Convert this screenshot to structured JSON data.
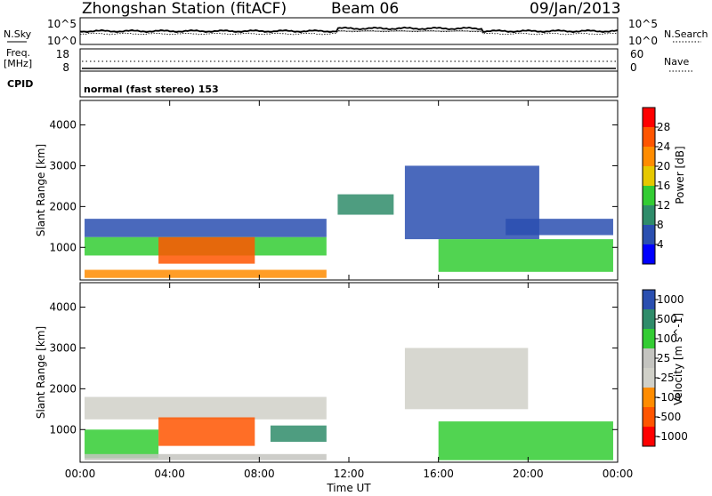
{
  "header": {
    "station": "Zhongshan Station (fitACF)",
    "beam": "Beam 06",
    "date": "09/Jan/2013"
  },
  "noise_panel": {
    "left_label": "N.Sky",
    "right_label": "N.Search",
    "left_ticks": [
      "10^5",
      "10^0"
    ],
    "right_ticks": [
      "10^5",
      "10^0"
    ]
  },
  "freq_panel": {
    "left_label_line1": "Freq.",
    "left_label_line2": "[MHz]",
    "right_label": "Nave",
    "left_ticks": [
      "18",
      "8"
    ],
    "right_ticks": [
      "60",
      "0"
    ]
  },
  "cpid": {
    "label": "CPID",
    "text": "normal (fast stereo) 153"
  },
  "colors": {
    "power_scale": [
      "#0000ff",
      "#2a4fb0",
      "#2f8c6a",
      "#33cc33",
      "#e6c800",
      "#ff8c00",
      "#ff5500",
      "#ff0000"
    ],
    "velocity_scale": [
      "#ff0000",
      "#ff5500",
      "#ff8c00",
      "#d0d0c8",
      "#c4c4c0",
      "#33cc33",
      "#2f8c6a",
      "#2a4fb0"
    ]
  },
  "chart_data": [
    {
      "type": "heatmap",
      "title": "",
      "xlabel": "",
      "ylabel": "Slant Range [km]",
      "xlim": [
        "00:00",
        "00:00"
      ],
      "ylim": [
        200,
        4600
      ],
      "x_ticks": [
        "00:00",
        "04:00",
        "08:00",
        "12:00",
        "16:00",
        "20:00",
        "00:00"
      ],
      "y_ticks": [
        1000,
        2000,
        3000,
        4000
      ],
      "colorbar": {
        "label": "Power [dB]",
        "range": [
          0,
          32
        ],
        "ticks": [
          4,
          8,
          12,
          16,
          20,
          24,
          28
        ]
      },
      "regions": [
        {
          "t_start_h": 0.2,
          "t_end_h": 11.0,
          "range_start_km": 1250,
          "range_end_km": 1700,
          "value_db": 6
        },
        {
          "t_start_h": 0.2,
          "t_end_h": 11.0,
          "range_start_km": 800,
          "range_end_km": 1250,
          "value_db": 12
        },
        {
          "t_start_h": 3.5,
          "t_end_h": 7.8,
          "range_start_km": 600,
          "range_end_km": 1250,
          "value_db": 26
        },
        {
          "t_start_h": 0.2,
          "t_end_h": 11.0,
          "range_start_km": 250,
          "range_end_km": 450,
          "value_db": 20
        },
        {
          "t_start_h": 11.5,
          "t_end_h": 14.0,
          "range_start_km": 1800,
          "range_end_km": 2300,
          "value_db": 8
        },
        {
          "t_start_h": 14.5,
          "t_end_h": 20.5,
          "range_start_km": 1200,
          "range_end_km": 3000,
          "value_db": 6
        },
        {
          "t_start_h": 16.0,
          "t_end_h": 23.8,
          "range_start_km": 400,
          "range_end_km": 1200,
          "value_db": 14
        },
        {
          "t_start_h": 19.0,
          "t_end_h": 23.8,
          "range_start_km": 1300,
          "range_end_km": 1700,
          "value_db": 6
        }
      ]
    },
    {
      "type": "heatmap",
      "title": "",
      "xlabel": "Time UT",
      "ylabel": "Slant Range [km]",
      "xlim": [
        "00:00",
        "00:00"
      ],
      "ylim": [
        200,
        4600
      ],
      "x_ticks": [
        "00:00",
        "04:00",
        "08:00",
        "12:00",
        "16:00",
        "20:00",
        "00:00"
      ],
      "y_ticks": [
        1000,
        2000,
        3000,
        4000
      ],
      "colorbar": {
        "label": "Velocity [m s^-1]",
        "ticks": [
          1000,
          500,
          100,
          25,
          -25,
          -100,
          -500,
          -1000
        ]
      },
      "regions": [
        {
          "t_start_h": 0.2,
          "t_end_h": 11.0,
          "range_start_km": 1250,
          "range_end_km": 1800,
          "value_ms": 0
        },
        {
          "t_start_h": 3.5,
          "t_end_h": 7.8,
          "range_start_km": 600,
          "range_end_km": 1300,
          "value_ms": -300
        },
        {
          "t_start_h": 0.2,
          "t_end_h": 3.5,
          "range_start_km": 300,
          "range_end_km": 1000,
          "value_ms": 200
        },
        {
          "t_start_h": 8.5,
          "t_end_h": 11.0,
          "range_start_km": 700,
          "range_end_km": 1100,
          "value_ms": 700
        },
        {
          "t_start_h": 0.2,
          "t_end_h": 11.0,
          "range_start_km": 250,
          "range_end_km": 400,
          "value_ms": 80
        },
        {
          "t_start_h": 14.5,
          "t_end_h": 20.0,
          "range_start_km": 1500,
          "range_end_km": 3000,
          "value_ms": 0
        },
        {
          "t_start_h": 16.0,
          "t_end_h": 23.8,
          "range_start_km": 250,
          "range_end_km": 1200,
          "value_ms": 150
        }
      ]
    }
  ]
}
